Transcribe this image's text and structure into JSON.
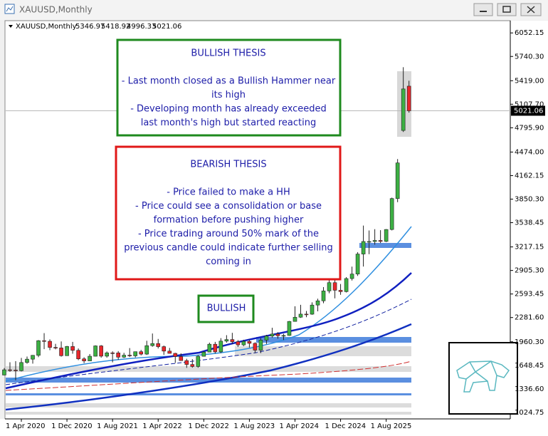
{
  "window": {
    "title": "XAUUSD,Monthly"
  },
  "chart_data": {
    "type": "candlestick",
    "symbol": "XAUUSD,Monthly",
    "categories": [
      null,
      null,
      null,
      "1 Apr 2020",
      null,
      null,
      null,
      null,
      null,
      null,
      null,
      "1 Dec 2020",
      null,
      null,
      null,
      null,
      null,
      null,
      null,
      "1 Aug 2021",
      null,
      null,
      null,
      null,
      null,
      null,
      null,
      "1 Apr 2022",
      null,
      null,
      null,
      null,
      null,
      null,
      null,
      "1 Dec 2022",
      null,
      null,
      null,
      null,
      null,
      null,
      null,
      "1 Aug 2023",
      null,
      null,
      null,
      null,
      null,
      null,
      null,
      "1 Apr 2024",
      null,
      null,
      null,
      null,
      null,
      null,
      null,
      "1 Dec 2024",
      null,
      null,
      null,
      null,
      null,
      null,
      null,
      "1 Aug 2025",
      null,
      null,
      null,
      null
    ],
    "open": [
      1520,
      1589,
      1585,
      1577,
      1686,
      1730,
      1781,
      1975,
      1967,
      1886,
      1879,
      1776,
      1898,
      1847,
      1734,
      1707,
      1769,
      1906,
      1770,
      1814,
      1813,
      1757,
      1783,
      1774,
      1829,
      1797,
      1909,
      1937,
      1896,
      1837,
      1807,
      1765,
      1711,
      1660,
      1633,
      1768,
      1824,
      1928,
      1827,
      1969,
      1990,
      1962,
      1919,
      1965,
      1940,
      1849,
      1983,
      2036,
      2063,
      2040,
      2044,
      2230,
      2286,
      2327,
      2326,
      2447,
      2503,
      2634,
      2744,
      2643,
      2625,
      2798,
      2858,
      3123,
      3289,
      3289,
      3303,
      3290,
      3448,
      3858,
      4760,
      5346.97
    ],
    "high": [
      1612,
      1689,
      1704,
      1747,
      1765,
      1785,
      1983,
      2075,
      1992,
      1933,
      1965,
      1906,
      1959,
      1872,
      1755,
      1798,
      1913,
      1917,
      1832,
      1834,
      1837,
      1814,
      1877,
      1831,
      1853,
      1974,
      2070,
      1998,
      1910,
      1879,
      1814,
      1808,
      1735,
      1730,
      1786,
      1833,
      1949,
      1959,
      2009,
      2048,
      2079,
      1983,
      1987,
      1987,
      1953,
      2009,
      2052,
      2146,
      2088,
      2065,
      2236,
      2431,
      2450,
      2368,
      2483,
      2531,
      2685,
      2790,
      2801,
      2726,
      2817,
      2956,
      3148,
      3500,
      3435,
      3452,
      3439,
      3453,
      3870,
      4381,
      5598,
      5418.92
    ],
    "low": [
      1517,
      1563,
      1451,
      1567,
      1670,
      1671,
      1757,
      1863,
      1849,
      1860,
      1764,
      1775,
      1802,
      1717,
      1677,
      1705,
      1766,
      1750,
      1750,
      1688,
      1722,
      1746,
      1759,
      1753,
      1780,
      1786,
      1895,
      1872,
      1787,
      1805,
      1681,
      1709,
      1615,
      1617,
      1616,
      1765,
      1823,
      1805,
      1810,
      1949,
      1932,
      1893,
      1903,
      1884,
      1811,
      1810,
      1931,
      2016,
      2002,
      1984,
      2039,
      2228,
      2277,
      2286,
      2318,
      2364,
      2471,
      2603,
      2536,
      2583,
      2614,
      2772,
      2833,
      2957,
      3121,
      3247,
      3268,
      3281,
      3436,
      3810,
      4740,
      4996.33
    ],
    "close": [
      1589,
      1585,
      1577,
      1686,
      1730,
      1781,
      1975,
      1967,
      1886,
      1879,
      1776,
      1898,
      1847,
      1734,
      1707,
      1769,
      1906,
      1770,
      1814,
      1813,
      1757,
      1783,
      1774,
      1829,
      1797,
      1909,
      1937,
      1896,
      1837,
      1807,
      1765,
      1711,
      1660,
      1633,
      1768,
      1824,
      1928,
      1827,
      1969,
      1990,
      1962,
      1919,
      1965,
      1940,
      1849,
      1983,
      2036,
      2063,
      2040,
      2044,
      2230,
      2286,
      2327,
      2326,
      2447,
      2503,
      2634,
      2744,
      2643,
      2625,
      2798,
      2858,
      3123,
      3289,
      3289,
      3303,
      3290,
      3448,
      3858,
      4330,
      5310,
      5021.06
    ],
    "up_color": "#3cb043",
    "down_color": "#e8262b",
    "ylim": [
      938.7,
      6214.6
    ],
    "yticks": [
      6052.15,
      {
        "value": 5740.3,
        "label": "5740.30"
      },
      {
        "value": 5419,
        "label": "5419.00"
      },
      {
        "value": 5107.7,
        "label": "5107.70"
      },
      {
        "value": 4795.9,
        "label": "4795.90"
      },
      {
        "value": 4474,
        "label": "4474.00"
      },
      4162.15,
      {
        "value": 3850.3,
        "label": "3850.30"
      },
      3538.45,
      3217.15,
      {
        "value": 2905.3,
        "label": "2905.30"
      },
      2593.45,
      {
        "value": 2281.6,
        "label": "2281.60"
      },
      {
        "value": 1960.3,
        "label": "1960.30"
      },
      1648.45,
      {
        "value": 1336.6,
        "label": "1336.60"
      },
      1024.75
    ],
    "annotations": {
      "bullish_thesis": {
        "title": "BULLISH THESIS",
        "lines": [
          "- Last month closed as a Bullish Hammer near",
          "its high",
          "- Developing month has already exceeded",
          "last month's high but started reacting"
        ]
      },
      "bearish_thesis": {
        "title": "BEARISH THESIS",
        "lines": [
          "- Price failed to make a HH",
          "- Price could see a consolidation or base",
          "formation before pushing higher",
          "- Price trading around 50% mark of the",
          "previous candle could indicate further selling",
          "coming in"
        ]
      },
      "label": "BULLISH"
    }
  }
}
